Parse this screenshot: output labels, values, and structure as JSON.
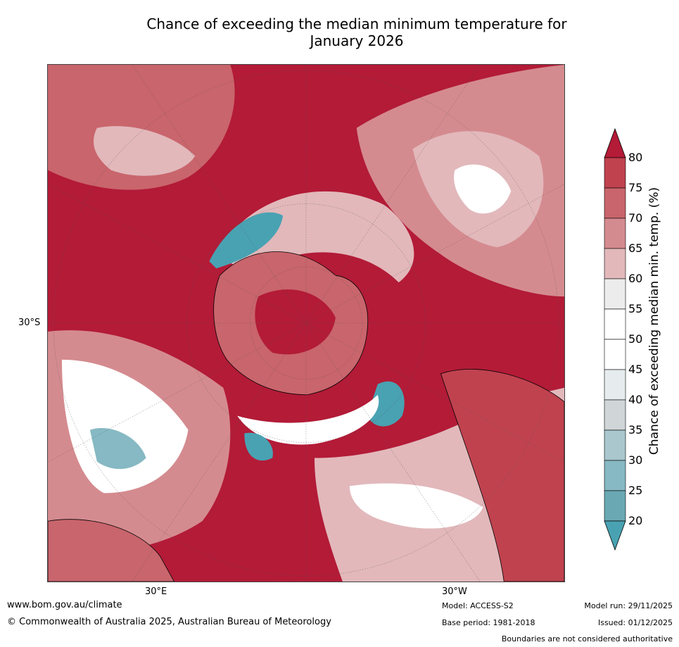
{
  "title_line1": "Chance of exceeding the median minimum temperature for",
  "title_line2": "January 2026",
  "axis_labels": {
    "lat": "30°S",
    "lon_east": "30°E",
    "lon_west": "30°W"
  },
  "colorbar": {
    "label": "Chance of exceeding median min. temp. (%)",
    "ticks": [
      "80",
      "75",
      "70",
      "65",
      "60",
      "55",
      "50",
      "45",
      "40",
      "35",
      "30",
      "25",
      "20"
    ],
    "colors": [
      "#b31b37",
      "#c0424f",
      "#c9656c",
      "#d48b8f",
      "#e2b8bb",
      "#ececec",
      "#ffffff",
      "#ffffff",
      "#e6ecee",
      "#d0d6d8",
      "#a9c7cc",
      "#86b9c3",
      "#6aa9b4",
      "#49a2b2"
    ]
  },
  "map_colors": {
    "hot": "#b31b37",
    "warm": "#c9656c",
    "mild": "#e2b8bb",
    "neutral": "#ffffff",
    "cool": "#49a2b2"
  },
  "footer": {
    "url": "www.bom.gov.au/climate",
    "copyright": "© Commonwealth of Australia 2025, Australian Bureau of Meteorology",
    "model": "Model: ACCESS-S2",
    "base_period": "Base period: 1981-2018",
    "model_run": "Model run: 29/11/2025",
    "issued": "Issued: 01/12/2025",
    "disclaimer": "Boundaries are not considered authoritative"
  }
}
